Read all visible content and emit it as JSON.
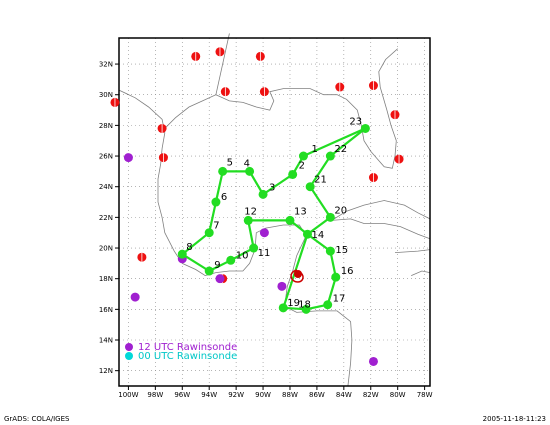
{
  "map": {
    "x_ticks": [
      "100W",
      "98W",
      "96W",
      "94W",
      "92W",
      "90W",
      "88W",
      "86W",
      "84W",
      "82W",
      "80W",
      "78W"
    ],
    "y_ticks": [
      "32N",
      "30N",
      "28N",
      "26N",
      "24N",
      "22N",
      "20N",
      "18N",
      "16N",
      "14N",
      "12N"
    ],
    "colors": {
      "track": "#22dd22",
      "rawin_12": "#a020d0",
      "rawin_00": "#00d8d8",
      "red_station": "#ee1111",
      "grid": "#888888",
      "coast": "#808080",
      "storm": "#cc0000"
    }
  },
  "legend": {
    "line1": "12 UTC Rawinsonde",
    "line2": "00 UTC Rawinsonde"
  },
  "footer": {
    "left": "GrADS: COLA/IGES",
    "right": "2005-11-18-11:23"
  },
  "track": [
    {
      "label": "1",
      "lon": -87.0,
      "lat": 26.0
    },
    {
      "label": "2",
      "lon": -87.8,
      "lat": 24.8
    },
    {
      "label": "3",
      "lon": -90.0,
      "lat": 23.5
    },
    {
      "label": "4",
      "lon": -91.0,
      "lat": 25.0
    },
    {
      "label": "5",
      "lon": -93.0,
      "lat": 25.0
    },
    {
      "label": "6",
      "lon": -93.5,
      "lat": 23.0
    },
    {
      "label": "7",
      "lon": -94.0,
      "lat": 21.0
    },
    {
      "label": "8",
      "lon": -96.0,
      "lat": 19.6
    },
    {
      "label": "9",
      "lon": -94.0,
      "lat": 18.5
    },
    {
      "label": "10",
      "lon": -92.4,
      "lat": 19.2
    },
    {
      "label": "11",
      "lon": -90.7,
      "lat": 20.0
    },
    {
      "label": "12",
      "lon": -91.1,
      "lat": 21.8
    },
    {
      "label": "13",
      "lon": -88.0,
      "lat": 21.8
    },
    {
      "label": "14",
      "lon": -86.7,
      "lat": 20.9
    },
    {
      "label": "15",
      "lon": -85.0,
      "lat": 19.8
    },
    {
      "label": "16",
      "lon": -84.6,
      "lat": 18.1
    },
    {
      "label": "17",
      "lon": -85.2,
      "lat": 16.3
    },
    {
      "label": "18",
      "lon": -86.8,
      "lat": 16.0
    },
    {
      "label": "19",
      "lon": -88.5,
      "lat": 16.1
    },
    {
      "label": "20",
      "lon": -85.0,
      "lat": 22.0
    },
    {
      "label": "21",
      "lon": -86.5,
      "lat": 24.0
    },
    {
      "label": "22",
      "lon": -85.0,
      "lat": 26.0
    },
    {
      "label": "23",
      "lon": -82.4,
      "lat": 27.8
    }
  ],
  "track_order": [
    22,
    0,
    1,
    2,
    3,
    4,
    5,
    6,
    7,
    8,
    9,
    10,
    11,
    12,
    13,
    14,
    15,
    16,
    17,
    18,
    13,
    19,
    20,
    21,
    22
  ],
  "red_stations": [
    [
      -93.2,
      32.8
    ],
    [
      -90.2,
      32.5
    ],
    [
      -95.0,
      32.5
    ],
    [
      -101.0,
      29.5
    ],
    [
      -97.5,
      27.8
    ],
    [
      -92.8,
      30.2
    ],
    [
      -89.9,
      30.2
    ],
    [
      -84.3,
      30.5
    ],
    [
      -81.8,
      30.6
    ],
    [
      -80.2,
      28.7
    ],
    [
      -81.8,
      24.6
    ],
    [
      -79.9,
      25.8
    ],
    [
      -97.4,
      25.9
    ],
    [
      -99.0,
      19.4
    ],
    [
      -93.0,
      18.0
    ]
  ],
  "purple_stations": [
    [
      -100.0,
      25.9
    ],
    [
      -96.0,
      19.3
    ],
    [
      -93.2,
      18.0
    ],
    [
      -99.5,
      16.8
    ],
    [
      -89.9,
      21.0
    ],
    [
      -88.6,
      17.5
    ],
    [
      -81.8,
      12.6
    ]
  ]
}
